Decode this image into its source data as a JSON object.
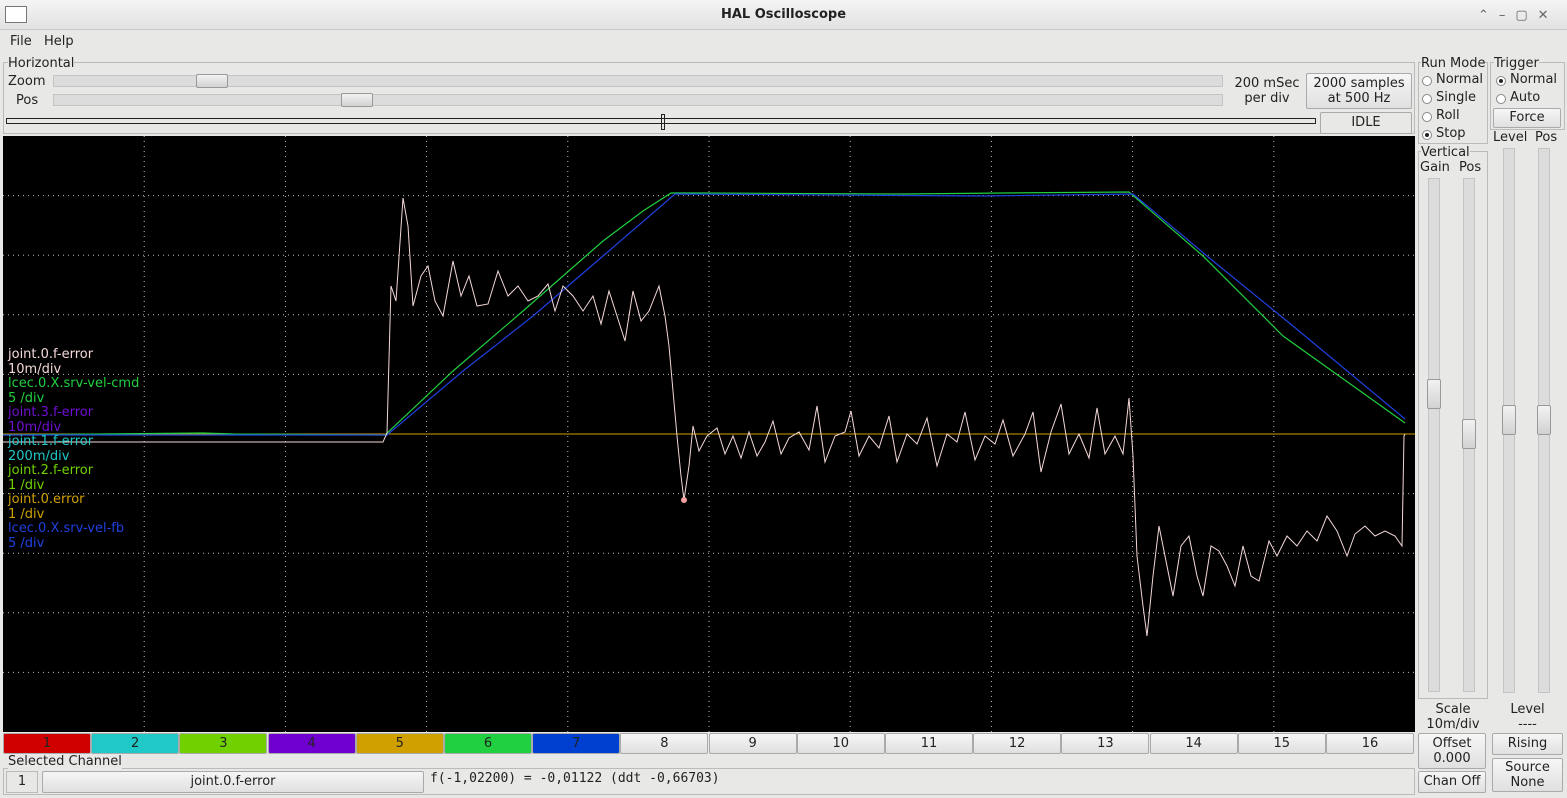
{
  "window": {
    "title": "HAL Oscilloscope"
  },
  "menu": [
    "File",
    "Help"
  ],
  "horizontal": {
    "title": "Horizontal",
    "zoom_label": "Zoom",
    "pos_label": "Pos",
    "rate": [
      "200 mSec",
      "per div"
    ],
    "samples_button": [
      "2000 samples",
      "at 500 Hz"
    ],
    "status": "IDLE"
  },
  "run_mode": {
    "title": "Run Mode",
    "options": [
      "Normal",
      "Single",
      "Roll",
      "Stop"
    ],
    "selected": 3
  },
  "trigger": {
    "title": "Trigger",
    "options": [
      "Normal",
      "Auto"
    ],
    "selected": 0,
    "force": "Force",
    "level_label": "Level",
    "pos_label": "Pos",
    "level_title": "Level",
    "level_value": "----",
    "edge": "Rising",
    "source": [
      "Source",
      "None"
    ]
  },
  "vertical": {
    "title": "Vertical",
    "gain_label": "Gain",
    "pos_label": "Pos",
    "scale": [
      "Scale",
      "10m/div"
    ],
    "offset": [
      "Offset",
      "0.000"
    ],
    "chan_off": "Chan Off"
  },
  "channels": [
    {
      "name": "joint.0.f-error",
      "scale": "10m/div",
      "color": "#f4d8d8"
    },
    {
      "name": "lcec.0.X.srv-vel-cmd",
      "scale": "5 /div",
      "color": "#20d040"
    },
    {
      "name": "joint.3.f-error",
      "scale": "10m/div",
      "color": "#7010d0"
    },
    {
      "name": "joint.1.f-error",
      "scale": "200m/div",
      "color": "#20c8c8"
    },
    {
      "name": "joint.2.f-error",
      "scale": "1 /div",
      "color": "#70d000"
    },
    {
      "name": "joint.0.error",
      "scale": "1 /div",
      "color": "#d0a000"
    },
    {
      "name": "lcec.0.X.srv-vel-fb",
      "scale": "5 /div",
      "color": "#2040e0"
    }
  ],
  "channel_buttons": [
    {
      "label": "1",
      "color": "#d00000"
    },
    {
      "label": "2",
      "color": "#20c8c8"
    },
    {
      "label": "3",
      "color": "#70d000"
    },
    {
      "label": "4",
      "color": "#7000d0"
    },
    {
      "label": "5",
      "color": "#d0a000"
    },
    {
      "label": "6",
      "color": "#20d040"
    },
    {
      "label": "7",
      "color": "#0040d0"
    },
    {
      "label": "8"
    },
    {
      "label": "9"
    },
    {
      "label": "10"
    },
    {
      "label": "11"
    },
    {
      "label": "12"
    },
    {
      "label": "13"
    },
    {
      "label": "14"
    },
    {
      "label": "15"
    },
    {
      "label": "16"
    }
  ],
  "selected_channel": {
    "title": "Selected Channel",
    "number": "1",
    "name": "joint.0.f-error",
    "readout": "f(-1,02200) = -0,01122 (ddt -0,66703)"
  }
}
